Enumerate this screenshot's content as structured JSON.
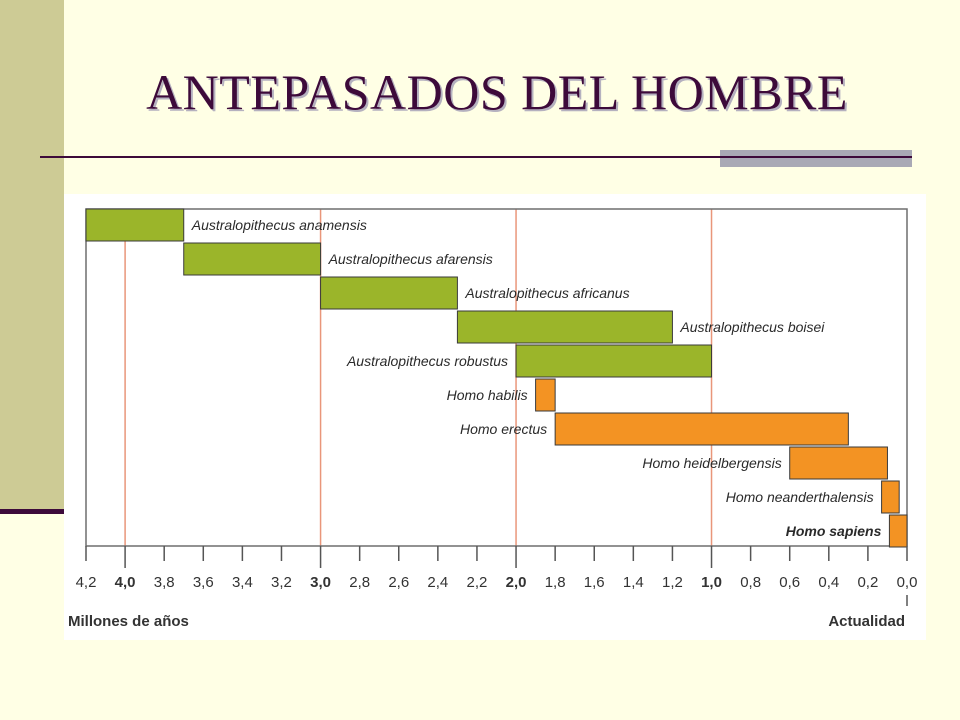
{
  "slide": {
    "title": "ANTEPASADOS DEL HOMBRE"
  },
  "colors": {
    "australopithecus": "#9BB52A",
    "homo": "#F39323",
    "frame": "#6E6E6E",
    "guide_line": "#E9967A",
    "title": "#3D0A3A"
  },
  "chart_data": {
    "type": "bar",
    "orientation": "horizontal-range",
    "title": "",
    "xlabel": "Millones de años",
    "xlabel_right": "Actualidad",
    "x_reversed": true,
    "xlim": [
      4.2,
      0.0
    ],
    "x_ticks": [
      "4,2",
      "4,0",
      "3,8",
      "3,6",
      "3,4",
      "3,2",
      "3,0",
      "2,8",
      "2,6",
      "2,4",
      "2,2",
      "2,0",
      "1,8",
      "1,6",
      "1,4",
      "1,2",
      "1,0",
      "0,8",
      "0,6",
      "0,4",
      "0,2",
      "0,0"
    ],
    "major_ticks": [
      "4,0",
      "3,0",
      "2,0",
      "1,0"
    ],
    "guide_lines": [
      4.0,
      3.0,
      2.0,
      1.0
    ],
    "grid": false,
    "series": [
      {
        "label": "Australopithecus anamensis",
        "start": 4.2,
        "end": 3.7,
        "group": "australopithecus",
        "label_side": "right",
        "bold": false
      },
      {
        "label": "Australopithecus afarensis",
        "start": 3.7,
        "end": 3.0,
        "group": "australopithecus",
        "label_side": "right",
        "bold": false
      },
      {
        "label": "Australopithecus africanus",
        "start": 3.0,
        "end": 2.3,
        "group": "australopithecus",
        "label_side": "right",
        "bold": false
      },
      {
        "label": "Australopithecus boisei",
        "start": 2.3,
        "end": 1.2,
        "group": "australopithecus",
        "label_side": "right",
        "bold": false
      },
      {
        "label": "Australopithecus robustus",
        "start": 2.0,
        "end": 1.0,
        "group": "australopithecus",
        "label_side": "left",
        "bold": false
      },
      {
        "label": "Homo habilis",
        "start": 1.9,
        "end": 1.8,
        "group": "homo",
        "label_side": "left",
        "bold": false
      },
      {
        "label": "Homo erectus",
        "start": 1.8,
        "end": 0.3,
        "group": "homo",
        "label_side": "left",
        "bold": false
      },
      {
        "label": "Homo heidelbergensis",
        "start": 0.6,
        "end": 0.1,
        "group": "homo",
        "label_side": "left",
        "bold": false
      },
      {
        "label": "Homo neanderthalensis",
        "start": 0.13,
        "end": 0.04,
        "group": "homo",
        "label_side": "left",
        "bold": false
      },
      {
        "label": "Homo sapiens",
        "start": 0.09,
        "end": 0.0,
        "group": "homo",
        "label_side": "left",
        "bold": true
      }
    ]
  }
}
